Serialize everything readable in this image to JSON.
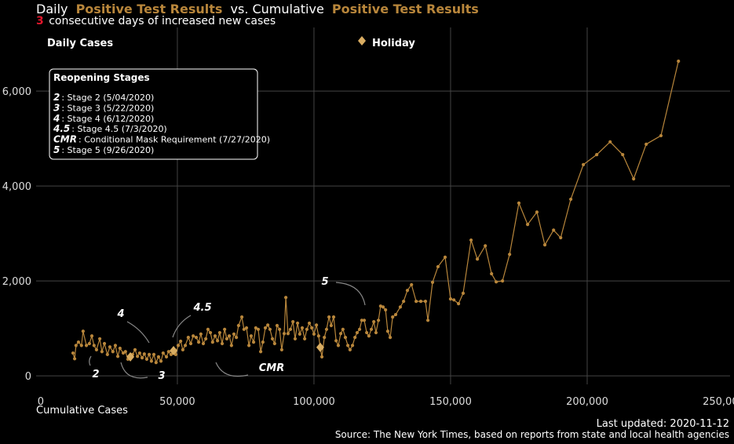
{
  "chart_data": {
    "type": "line",
    "title_parts": [
      "Daily",
      "Positive Test Results",
      "vs. Cumulative",
      "Positive Test Results"
    ],
    "subtitle_number": 3,
    "subtitle_text": "consecutive days of increased new cases",
    "xlabel": "Cumulative Cases",
    "footer": [
      "Last updated: 2020-11-12",
      "Source: The New York Times, based on reports from state and local health agencies"
    ],
    "xlim": [
      -1700,
      252300
    ],
    "ylim": [
      -180,
      7340
    ],
    "xticks": [
      0,
      {
        "value": 50000,
        "label": "50,000"
      },
      {
        "value": 100000,
        "label": "100,000"
      },
      {
        "value": 150000,
        "label": "150,000"
      },
      {
        "value": 200000,
        "label": "200,000"
      },
      {
        "value": 250000,
        "label": "250,000"
      }
    ],
    "yticks": [
      0,
      {
        "value": 2000,
        "label": "2,000"
      },
      {
        "value": 4000,
        "label": "4,000"
      },
      {
        "value": 6000,
        "label": "6,000"
      }
    ],
    "grid": true,
    "x": [
      11800,
      12400,
      12900,
      13800,
      14900,
      15500,
      16700,
      17800,
      18700,
      19500,
      20400,
      21600,
      22400,
      23300,
      24400,
      25300,
      26400,
      27300,
      28200,
      29000,
      30200,
      31000,
      31900,
      32800,
      33600,
      34500,
      35400,
      36200,
      37100,
      37900,
      38800,
      39700,
      40500,
      41400,
      42200,
      43100,
      44000,
      44800,
      46000,
      46800,
      47700,
      48600,
      49400,
      50300,
      51200,
      52000,
      52900,
      54000,
      54900,
      55800,
      56900,
      57800,
      58600,
      59500,
      60400,
      61200,
      62100,
      62900,
      63800,
      64700,
      65500,
      66400,
      67300,
      68100,
      69000,
      69800,
      70700,
      71600,
      72400,
      73600,
      74400,
      75300,
      76200,
      77000,
      77900,
      78700,
      79600,
      80500,
      81300,
      82200,
      83100,
      83900,
      84800,
      85600,
      86500,
      87400,
      88200,
      89100,
      89700,
      90500,
      91400,
      92300,
      93100,
      94000,
      94800,
      95700,
      96600,
      97400,
      98300,
      99200,
      100000,
      100900,
      101700,
      102300,
      102900,
      103800,
      104600,
      105500,
      106300,
      107200,
      108100,
      108900,
      109800,
      110600,
      111500,
      112400,
      113200,
      114100,
      115000,
      115800,
      116700,
      117500,
      118400,
      119300,
      120100,
      121000,
      121900,
      122700,
      123600,
      124400,
      125300,
      126200,
      127000,
      127900,
      128800,
      129900,
      131600,
      132800,
      134200,
      135700,
      137400,
      139100,
      140800,
      141700,
      143400,
      145400,
      148000,
      150000,
      151200,
      152900,
      154600,
      157500,
      159800,
      162700,
      165000,
      166700,
      169000,
      171600,
      175000,
      178200,
      181600,
      184500,
      187700,
      190300,
      194000,
      198600,
      203500,
      208400,
      213000,
      217000,
      221600,
      227000,
      233400
    ],
    "series": [
      {
        "name": "Daily Cases",
        "color": "#b8863b",
        "values": [
          480,
          360,
          640,
          710,
          640,
          940,
          640,
          680,
          840,
          640,
          550,
          780,
          510,
          680,
          450,
          610,
          510,
          640,
          410,
          580,
          480,
          510,
          350,
          400,
          450,
          550,
          410,
          480,
          380,
          460,
          350,
          450,
          310,
          450,
          280,
          400,
          310,
          480,
          400,
          510,
          450,
          530,
          450,
          640,
          730,
          550,
          640,
          810,
          680,
          840,
          810,
          710,
          880,
          680,
          780,
          980,
          910,
          710,
          840,
          740,
          910,
          680,
          980,
          780,
          840,
          640,
          880,
          810,
          1060,
          1240,
          980,
          1010,
          640,
          840,
          710,
          1010,
          980,
          510,
          710,
          1010,
          1070,
          980,
          780,
          680,
          1060,
          980,
          550,
          890,
          1650,
          890,
          980,
          1140,
          780,
          1110,
          880,
          1010,
          780,
          980,
          1110,
          1010,
          880,
          1070,
          840,
          600,
          400,
          810,
          980,
          1240,
          1060,
          1240,
          740,
          640,
          890,
          980,
          810,
          640,
          550,
          640,
          810,
          910,
          980,
          1170,
          1170,
          910,
          840,
          980,
          1140,
          910,
          1170,
          1470,
          1450,
          1390,
          940,
          810,
          1240,
          1290,
          1450,
          1570,
          1800,
          1920,
          1570,
          1570,
          1570,
          1170,
          1970,
          2300,
          2500,
          1620,
          1600,
          1520,
          1740,
          2860,
          2460,
          2740,
          2150,
          1980,
          2000,
          2560,
          3640,
          3190,
          3450,
          2760,
          3070,
          2910,
          3720,
          4450,
          4660,
          4930,
          4660,
          4150,
          4880,
          5060,
          6630
        ]
      },
      {
        "name": "Holiday",
        "color": "#d9ad62",
        "x": [
          32800,
          48600,
          102300
        ],
        "values": [
          400,
          530,
          600
        ]
      }
    ],
    "stages_title": "Reopening Stages",
    "stages": [
      {
        "key": "2",
        "text": ": Stage 2 (5/04/2020)"
      },
      {
        "key": "3",
        "text": ": Stage 3 (5/22/2020)"
      },
      {
        "key": "4",
        "text": ": Stage 4 (6/12/2020)"
      },
      {
        "key": "4.5",
        "text": ": Stage 4.5 (7/3/2020)"
      },
      {
        "key": "CMR",
        "text": ": Conditional Mask Requirement (7/27/2020)"
      },
      {
        "key": "5",
        "text": ": Stage 5 (9/26/2020)"
      }
    ],
    "annotations": [
      "2",
      "3",
      "4",
      "4.5",
      "CMR",
      "5"
    ]
  }
}
